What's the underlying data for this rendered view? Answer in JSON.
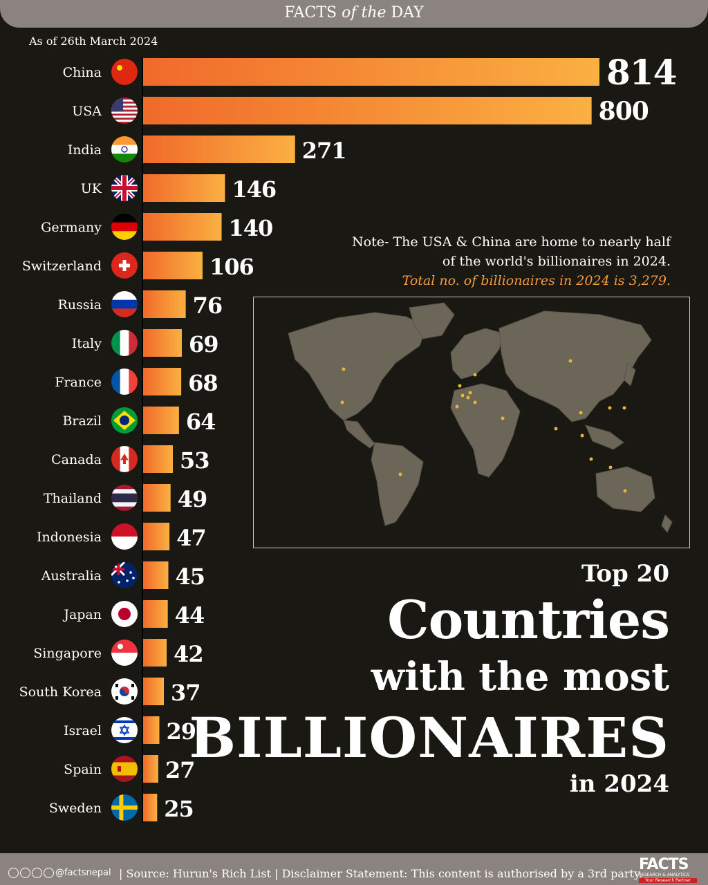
{
  "header": {
    "pre": "FACTS ",
    "em": "of the",
    "post": " DAY"
  },
  "as_of": "As of 26th March 2024",
  "note": {
    "line1": "Note- The USA & China are home to nearly half",
    "line2": "of the world's billionaires in 2024.",
    "total": "Total no. of billionaires in 2024 is 3,279."
  },
  "headline": {
    "top": "Top 20",
    "countries": "Countries",
    "with": "with the most",
    "billionaires": "BILLIONAIRES",
    "year": "in 2024"
  },
  "footer": {
    "handle": "@factsnepal",
    "text": "| Source: Hurun's Rich List | Disclaimer Statement: This content is authorised by a 3rd party.",
    "logo": "FACTS",
    "logo_sub": "RESEARCH & ANALYTICS",
    "logo_tag": "Your Research Partner"
  },
  "colors": {
    "bar_start": "#f06a2a",
    "bar_end": "#fbb042",
    "background": "#1a1813",
    "bar_band": "#8a8380",
    "note_accent": "#f39a3c"
  },
  "chart_data": {
    "type": "bar",
    "orientation": "horizontal",
    "categories": [
      "China",
      "USA",
      "India",
      "UK",
      "Germany",
      "Switzerland",
      "Russia",
      "Italy",
      "France",
      "Brazil",
      "Canada",
      "Thailand",
      "Indonesia",
      "Australia",
      "Japan",
      "Singapore",
      "South Korea",
      "Israel",
      "Spain",
      "Sweden"
    ],
    "values": [
      814,
      800,
      271,
      146,
      140,
      106,
      76,
      69,
      68,
      64,
      53,
      49,
      47,
      45,
      44,
      42,
      37,
      29,
      27,
      25
    ],
    "flags": [
      "china-flag-icon",
      "usa-flag-icon",
      "india-flag-icon",
      "uk-flag-icon",
      "germany-flag-icon",
      "switzerland-flag-icon",
      "russia-flag-icon",
      "italy-flag-icon",
      "france-flag-icon",
      "brazil-flag-icon",
      "canada-flag-icon",
      "thailand-flag-icon",
      "indonesia-flag-icon",
      "australia-flag-icon",
      "japan-flag-icon",
      "singapore-flag-icon",
      "south-korea-flag-icon",
      "israel-flag-icon",
      "spain-flag-icon",
      "sweden-flag-icon"
    ],
    "xlim": [
      0,
      814
    ]
  }
}
